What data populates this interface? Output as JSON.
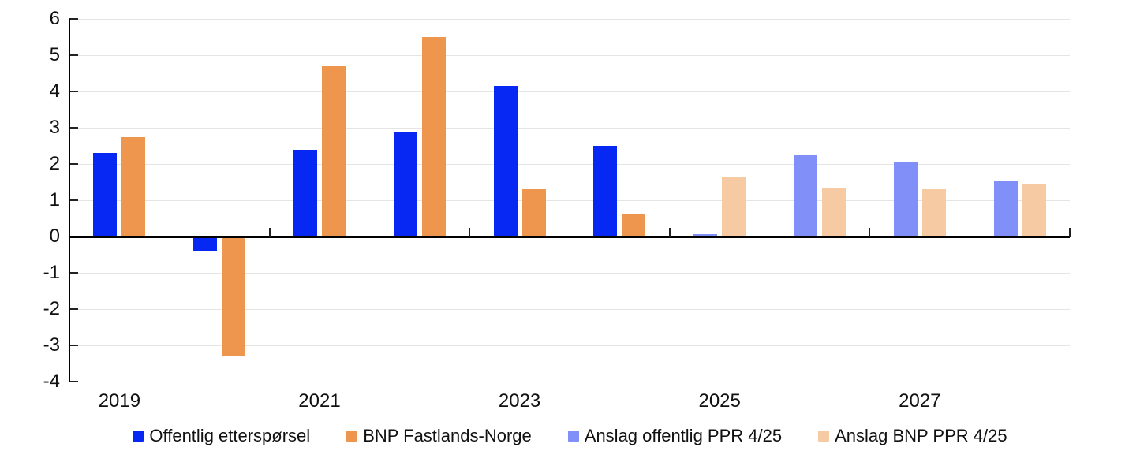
{
  "chart_data": {
    "type": "bar",
    "title": "",
    "xlabel": "",
    "ylabel": "",
    "categories": [
      "2019",
      "2020",
      "2021",
      "2022",
      "2023",
      "2024",
      "2025",
      "2026",
      "2027",
      "2028"
    ],
    "series": [
      {
        "name": "Offentlig etterspørsel",
        "color": "#0628F2",
        "slot": 0,
        "values": [
          2.3,
          -0.4,
          2.4,
          2.9,
          4.15,
          2.5,
          null,
          null,
          null,
          null
        ]
      },
      {
        "name": "BNP Fastlands-Norge",
        "color": "#EE964D",
        "slot": 1,
        "values": [
          2.75,
          -3.3,
          4.7,
          5.5,
          1.3,
          0.6,
          null,
          null,
          null,
          null
        ]
      },
      {
        "name": "Anslag offentlig PPR 4/25",
        "color": "#8090F8",
        "slot": 0,
        "values": [
          null,
          null,
          null,
          null,
          null,
          null,
          0.05,
          2.25,
          2.05,
          1.55
        ]
      },
      {
        "name": "Anslag BNP PPR 4/25",
        "color": "#F6CAA2",
        "slot": 1,
        "values": [
          null,
          null,
          null,
          null,
          null,
          null,
          1.65,
          1.35,
          1.3,
          1.45
        ]
      }
    ],
    "ylim": [
      -4,
      6
    ],
    "y_tick_step": 1,
    "y_tick_labels": [
      "6",
      "5",
      "4",
      "3",
      "2",
      "1",
      "0",
      "-1",
      "-2",
      "-3",
      "-4"
    ],
    "x_tick_labels": [
      "2019",
      "2021",
      "2023",
      "2025",
      "2027"
    ],
    "grid": true,
    "legend_position": "bottom"
  },
  "colors": {
    "grid": "#E4E4E4",
    "zero_line": "#000000",
    "axis": "#000000",
    "text": "#111111",
    "background": "#FFFFFF"
  }
}
